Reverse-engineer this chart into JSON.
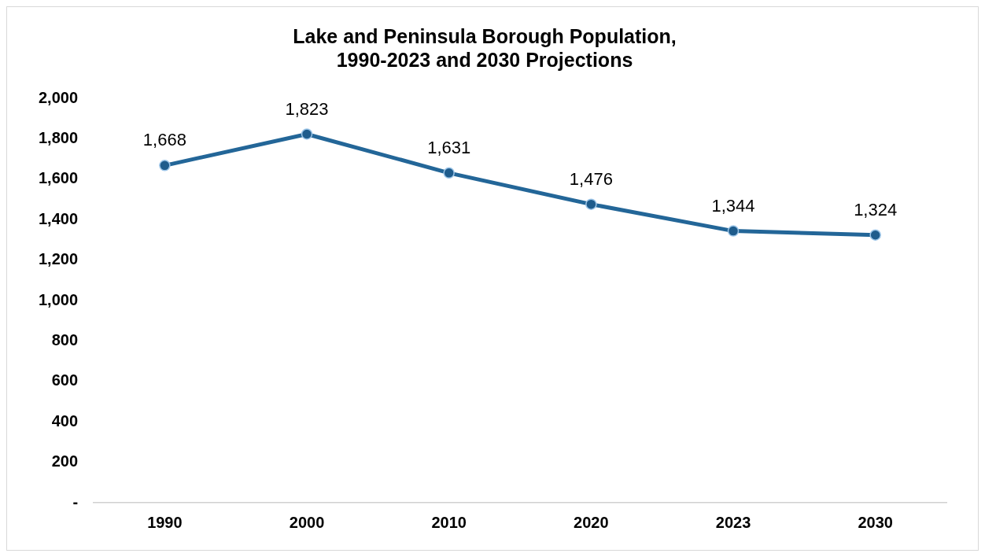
{
  "chart_data": {
    "type": "line",
    "title": [
      "Lake and Peninsula Borough Population,",
      "1990-2023 and 2030 Projections"
    ],
    "categories": [
      "1990",
      "2000",
      "2010",
      "2020",
      "2023",
      "2030"
    ],
    "series": [
      {
        "color": "#236698",
        "values": [
          1668,
          1823,
          1631,
          1476,
          1344,
          1324
        ],
        "value_labels": [
          "1,668",
          "1,823",
          "1,631",
          "1,476",
          "1,344",
          "1,324"
        ]
      }
    ],
    "ylim": [
      0,
      2000
    ],
    "yticks": [
      {
        "value": 0,
        "label": "-"
      },
      200,
      400,
      600,
      800,
      {
        "value": 1000,
        "label": "1,000"
      },
      {
        "value": 1200,
        "label": "1,200"
      },
      {
        "value": 1400,
        "label": "1,400"
      },
      {
        "value": 1600,
        "label": "1,600"
      },
      {
        "value": 1800,
        "label": "1,800"
      },
      {
        "value": 2000,
        "label": "2,000"
      }
    ],
    "grid": false,
    "legend": false,
    "marker": "circle",
    "line_style": "solid"
  }
}
